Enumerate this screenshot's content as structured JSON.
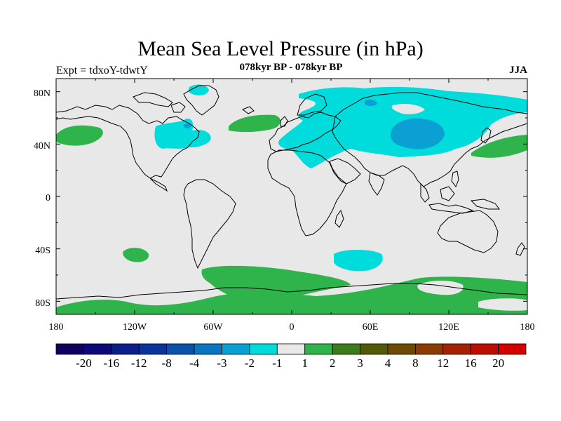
{
  "figure": {
    "title": "Mean Sea Level Pressure (in hPa)",
    "subtitle": "078kyr BP - 078kyr BP",
    "left_label": "Expt = tdxoY-tdwtY",
    "right_label": "JJA"
  },
  "map": {
    "lon_ticks": [
      "180",
      "120W",
      "60W",
      "0",
      "60E",
      "120E",
      "180"
    ],
    "lat_ticks": [
      "80N",
      "40N",
      "0",
      "40S",
      "80S"
    ],
    "background_color": "#e8e8e8",
    "coastline_color": "#000000"
  },
  "colorbar": {
    "colors": [
      "#100060",
      "#0c0a78",
      "#0a1e8c",
      "#08349c",
      "#0a52aa",
      "#0a76c0",
      "#0aa0d4",
      "#00dcdc",
      "#e8e8e8",
      "#2eb44a",
      "#3c7c1c",
      "#525a08",
      "#6e4a04",
      "#8a3c02",
      "#a42200",
      "#bc0e00",
      "#d40000"
    ],
    "labels": [
      "-20",
      "-16",
      "-12",
      "-8",
      "-4",
      "-3",
      "-2",
      "-1",
      "1",
      "2",
      "3",
      "4",
      "8",
      "12",
      "16",
      "20"
    ]
  },
  "chart_data": {
    "type": "filled-contour-map",
    "title": "Mean Sea Level Pressure (in hPa)",
    "subtitle": "078kyr BP - 078kyr BP",
    "experiment": "Expt = tdxoY-tdwtY",
    "season": "JJA",
    "contour_levels": [
      -20,
      -16,
      -12,
      -8,
      -4,
      -3,
      -2,
      -1,
      1,
      2,
      3,
      4,
      8,
      12,
      16,
      20
    ],
    "xlim": [
      -180,
      180
    ],
    "ylim": [
      -90,
      90
    ],
    "regions": [
      {
        "name": "Arctic / Scandinavia",
        "color": "#00dcdc",
        "range": [
          -2,
          -1
        ]
      },
      {
        "name": "Eurasia / Central Asia",
        "color": "#00dcdc",
        "range": [
          -2,
          -1
        ]
      },
      {
        "name": "Central Asia core",
        "color": "#0aa0d4",
        "range": [
          -3,
          -2
        ]
      },
      {
        "name": "Eastern North America",
        "color": "#00dcdc",
        "range": [
          -2,
          -1
        ]
      },
      {
        "name": "Southern Indian Ocean",
        "color": "#00dcdc",
        "range": [
          -2,
          -1
        ]
      },
      {
        "name": "North Pacific (west)",
        "color": "#2eb44a",
        "range": [
          1,
          2
        ]
      },
      {
        "name": "North Pacific (east)",
        "color": "#2eb44a",
        "range": [
          1,
          2
        ]
      },
      {
        "name": "North Atlantic",
        "color": "#2eb44a",
        "range": [
          1,
          2
        ]
      },
      {
        "name": "South Pacific",
        "color": "#2eb44a",
        "range": [
          1,
          2
        ]
      },
      {
        "name": "Southern Ocean / Antarctica",
        "color": "#2eb44a",
        "range": [
          1,
          2
        ]
      }
    ]
  }
}
